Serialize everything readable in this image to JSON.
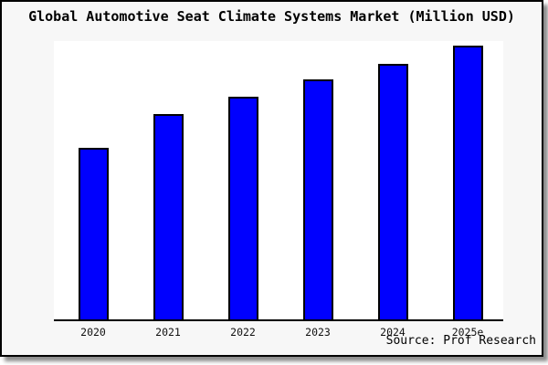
{
  "page": {
    "background_color": "#ffffff",
    "frame_background": "#f7f7f7",
    "frame_border_color": "#000000"
  },
  "header": {
    "title": "Global Automotive Seat Climate Systems Market (Million USD)"
  },
  "footer": {
    "source": "Source: Prof Research"
  },
  "chart_data": {
    "type": "bar",
    "title": "Global Automotive Seat Climate Systems Market (Million USD)",
    "categories": [
      "2020",
      "2021",
      "2022",
      "2023",
      "2024",
      "2025e"
    ],
    "values": [
      62.7,
      75.1,
      81.5,
      87.8,
      93.6,
      100
    ],
    "values_note": "no y-axis ticks or data labels shown; values estimated from bar pixel heights normalized so 2025e = 100",
    "ylim": [
      0,
      101.8
    ],
    "xlabel": "",
    "ylabel": "",
    "grid": false,
    "legend": false,
    "bar_color": "#0000fe",
    "bar_border_color": "#000000",
    "plot_background": "#ffffff",
    "source": "Source: Prof Research"
  }
}
